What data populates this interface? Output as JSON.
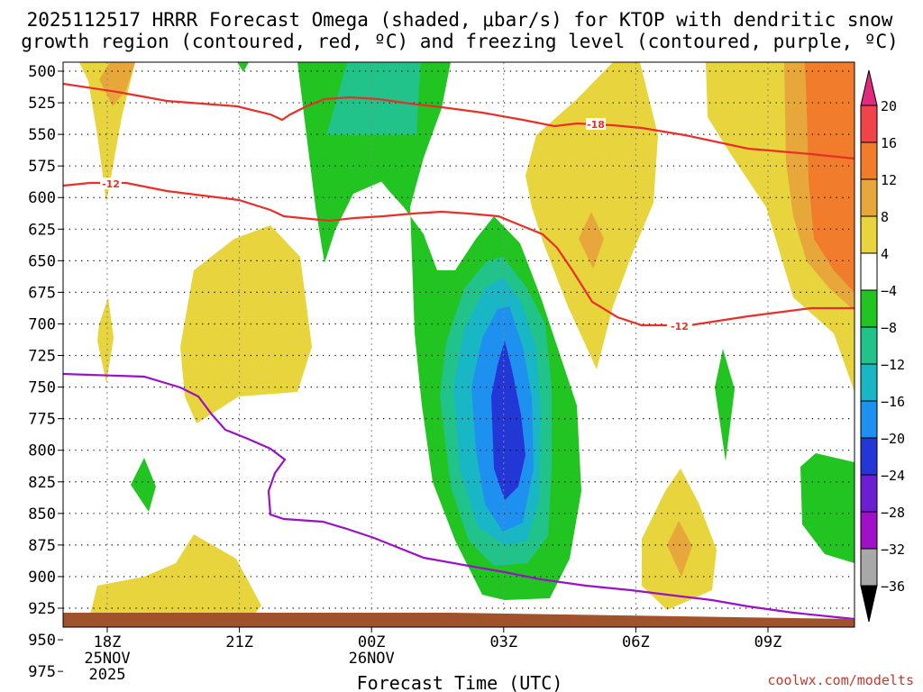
{
  "chart_data": {
    "type": "heatmap",
    "title_line1": "2025112517 HRRR Forecast Omega (shaded, μbar/s) for KTOP with dendritic snow",
    "title_line2": "growth region (contoured, red, ºC) and freezing level (contoured, purple, ºC)",
    "xlabel": "Forecast Time (UTC)",
    "credit": "coolwx.com/modelts",
    "y_ticks": [
      "500",
      "525",
      "550",
      "575",
      "600",
      "625",
      "650",
      "675",
      "700",
      "725",
      "750",
      "775",
      "800",
      "825",
      "850",
      "875",
      "900",
      "925",
      "950",
      "975"
    ],
    "x_ticks": [
      {
        "label": "18Z",
        "sub1": "25NOV",
        "sub2": "2025"
      },
      {
        "label": "21Z",
        "sub1": "",
        "sub2": ""
      },
      {
        "label": "00Z",
        "sub1": "26NOV",
        "sub2": ""
      },
      {
        "label": "03Z",
        "sub1": "",
        "sub2": ""
      },
      {
        "label": "06Z",
        "sub1": "",
        "sub2": ""
      },
      {
        "label": "09Z",
        "sub1": "",
        "sub2": ""
      }
    ],
    "colorbar": {
      "labels": [
        "20",
        "16",
        "12",
        "8",
        "4",
        "−4",
        "−8",
        "−12",
        "−16",
        "−20",
        "−24",
        "−28",
        "−32",
        "−36"
      ],
      "colors": [
        "#e02a7e",
        "#f0434a",
        "#f07c2c",
        "#e8a73a",
        "#e8d43c",
        "#ffffff",
        "#22c422",
        "#21c38a",
        "#19b7c6",
        "#1e90f0",
        "#2337d6",
        "#6c1fd0",
        "#a010c8",
        "#a8a8a8",
        "#000000"
      ]
    },
    "contours": {
      "dgz_labels": [
        "-18",
        "-12",
        "-12"
      ],
      "dgz_color": "#e8302a",
      "freezing_color": "#9a12c8"
    },
    "ground_color": "#a0522d"
  }
}
